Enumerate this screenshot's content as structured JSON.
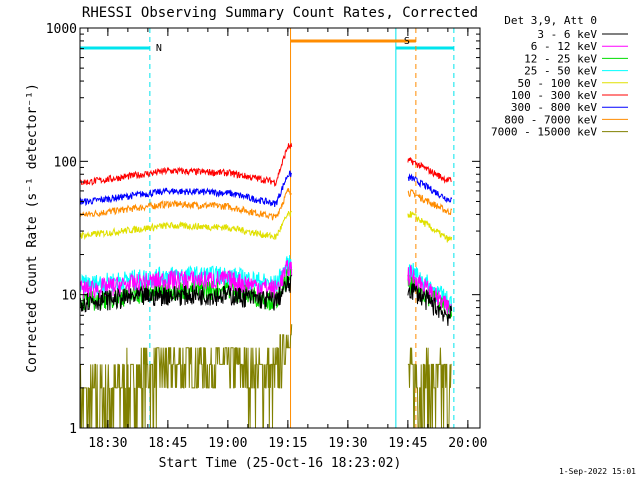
{
  "chart_data": {
    "type": "line",
    "title": "RHESSI Observing Summary Count Rates, Corrected",
    "xlabel": "Start Time (25-Oct-16 18:23:02)",
    "ylabel": "Corrected Count Rate (s⁻¹ detector⁻¹)",
    "yscale": "log",
    "ylim": [
      1,
      1000
    ],
    "xlim": [
      "18:23:02",
      "20:03:02"
    ],
    "x_ticks": [
      "18:30",
      "18:45",
      "19:00",
      "19:15",
      "19:30",
      "19:45",
      "20:00"
    ],
    "y_ticks": [
      "1",
      "10",
      "100",
      "1000"
    ],
    "grid": false,
    "legend_title": "Det 3,9, Att 0",
    "legend_position": "right",
    "footer": "1-Sep-2022 15:01",
    "flags": [
      {
        "label": "N",
        "color": "#00e5ee",
        "intervals": [
          [
            "18:23:02",
            "18:40:30"
          ],
          [
            "19:42:00",
            "19:56:30"
          ]
        ]
      },
      {
        "label": "S",
        "color": "#ff8c00",
        "intervals": [
          [
            "19:15:40",
            "19:47:00"
          ]
        ]
      }
    ],
    "data_gap": [
      "19:16",
      "19:45"
    ],
    "series": [
      {
        "name": "3 - 6 keV",
        "color": "#000000",
        "values": [
          {
            "t": "18:25",
            "y": 9
          },
          {
            "t": "18:45",
            "y": 10
          },
          {
            "t": "19:00",
            "y": 10
          },
          {
            "t": "19:12",
            "y": 9
          },
          {
            "t": "19:15",
            "y": 12
          },
          {
            "t": "19:46",
            "y": 11
          },
          {
            "t": "19:55",
            "y": 7
          }
        ]
      },
      {
        "name": "6 - 12 keV",
        "color": "#ff00ff",
        "values": [
          {
            "t": "18:25",
            "y": 11
          },
          {
            "t": "18:45",
            "y": 13
          },
          {
            "t": "19:00",
            "y": 13
          },
          {
            "t": "19:12",
            "y": 11
          },
          {
            "t": "19:15",
            "y": 16
          },
          {
            "t": "19:46",
            "y": 14
          },
          {
            "t": "19:55",
            "y": 8
          }
        ]
      },
      {
        "name": "12 - 25 keV",
        "color": "#00dd00",
        "values": [
          {
            "t": "18:25",
            "y": 9
          },
          {
            "t": "18:45",
            "y": 11
          },
          {
            "t": "19:00",
            "y": 11
          },
          {
            "t": "19:12",
            "y": 9
          },
          {
            "t": "19:15",
            "y": 14
          },
          {
            "t": "19:46",
            "y": 12
          },
          {
            "t": "19:55",
            "y": 8
          }
        ]
      },
      {
        "name": "25 - 50 keV",
        "color": "#00ffff",
        "values": [
          {
            "t": "18:25",
            "y": 12
          },
          {
            "t": "18:45",
            "y": 14
          },
          {
            "t": "19:00",
            "y": 14
          },
          {
            "t": "19:12",
            "y": 12
          },
          {
            "t": "19:15",
            "y": 17
          },
          {
            "t": "19:46",
            "y": 15
          },
          {
            "t": "19:55",
            "y": 9
          }
        ]
      },
      {
        "name": "50 - 100 keV",
        "color": "#e0e000",
        "values": [
          {
            "t": "18:25",
            "y": 28
          },
          {
            "t": "18:45",
            "y": 33
          },
          {
            "t": "19:00",
            "y": 32
          },
          {
            "t": "19:12",
            "y": 27
          },
          {
            "t": "19:15",
            "y": 40
          },
          {
            "t": "19:46",
            "y": 40
          },
          {
            "t": "19:55",
            "y": 26
          }
        ]
      },
      {
        "name": "100 - 300 keV",
        "color": "#ff0000",
        "values": [
          {
            "t": "18:25",
            "y": 70
          },
          {
            "t": "18:45",
            "y": 85
          },
          {
            "t": "19:00",
            "y": 82
          },
          {
            "t": "19:12",
            "y": 70
          },
          {
            "t": "19:15",
            "y": 130
          },
          {
            "t": "19:46",
            "y": 100
          },
          {
            "t": "19:55",
            "y": 72
          }
        ]
      },
      {
        "name": "300 - 800 keV",
        "color": "#0000ff",
        "values": [
          {
            "t": "18:25",
            "y": 50
          },
          {
            "t": "18:45",
            "y": 60
          },
          {
            "t": "19:00",
            "y": 58
          },
          {
            "t": "19:12",
            "y": 48
          },
          {
            "t": "19:15",
            "y": 80
          },
          {
            "t": "19:46",
            "y": 75
          },
          {
            "t": "19:55",
            "y": 52
          }
        ]
      },
      {
        "name": "800 - 7000 keV",
        "color": "#ff8c00",
        "values": [
          {
            "t": "18:25",
            "y": 40
          },
          {
            "t": "18:45",
            "y": 48
          },
          {
            "t": "19:00",
            "y": 46
          },
          {
            "t": "19:12",
            "y": 38
          },
          {
            "t": "19:15",
            "y": 60
          },
          {
            "t": "19:46",
            "y": 58
          },
          {
            "t": "19:55",
            "y": 42
          }
        ]
      },
      {
        "name": "7000 - 15000 keV",
        "color": "#808000",
        "values": [
          {
            "t": "18:25",
            "y": 1.5
          },
          {
            "t": "18:45",
            "y": 3
          },
          {
            "t": "19:00",
            "y": 3
          },
          {
            "t": "19:12",
            "y": 2.5
          },
          {
            "t": "19:15",
            "y": 5
          },
          {
            "t": "19:46",
            "y": 2.5
          },
          {
            "t": "19:55",
            "y": 2
          }
        ]
      }
    ]
  }
}
